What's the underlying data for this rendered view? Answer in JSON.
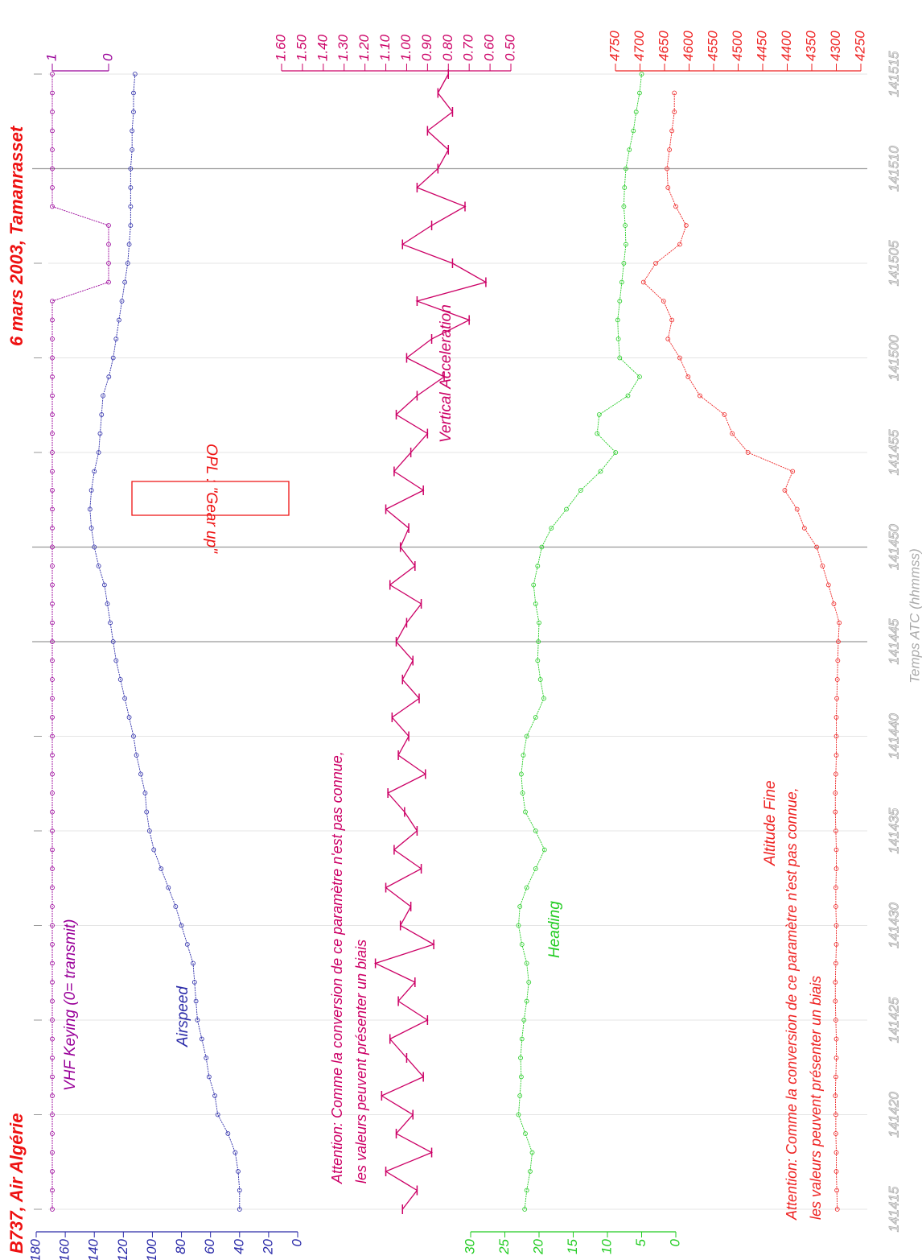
{
  "chart_data": {
    "type": "line",
    "title": "B737, Air Algérie",
    "subtitle": "6 mars 2003, Tamanrasset",
    "x_label": "Temps ATC (hhmmss)",
    "x": [
      0,
      1,
      2,
      3,
      4,
      5,
      6,
      7,
      8,
      9,
      10,
      11,
      12,
      13,
      14,
      15,
      16,
      17,
      18,
      19,
      20,
      21,
      22,
      23,
      24,
      25,
      26,
      27,
      28,
      29,
      30,
      31,
      32,
      33,
      34,
      35,
      36,
      37,
      38,
      39,
      40,
      41,
      42,
      43,
      44,
      45,
      46,
      47,
      48,
      49,
      50,
      51,
      52,
      53,
      54,
      55,
      56,
      57,
      58,
      59,
      60
    ],
    "xlim": [
      0,
      60
    ],
    "xticks": [
      {
        "value": 0,
        "label": "141415"
      },
      {
        "value": 5,
        "label": "141420"
      },
      {
        "value": 10,
        "label": "141425"
      },
      {
        "value": 15,
        "label": "141430"
      },
      {
        "value": 20,
        "label": "141435"
      },
      {
        "value": 25,
        "label": "141440"
      },
      {
        "value": 30,
        "label": "141445"
      },
      {
        "value": 35,
        "label": "141450"
      },
      {
        "value": 40,
        "label": "141455"
      },
      {
        "value": 45,
        "label": "141500"
      },
      {
        "value": 50,
        "label": "141505"
      },
      {
        "value": 55,
        "label": "141510"
      },
      {
        "value": 60,
        "label": "141515"
      }
    ],
    "grid": true,
    "event_lines": [
      30,
      35,
      55
    ],
    "series": [
      {
        "name": "Airspeed",
        "color": "#2a2aa8",
        "axis": "left",
        "markers": true,
        "ylim": [
          0,
          180
        ],
        "yticks": [
          0,
          20,
          40,
          60,
          80,
          100,
          120,
          140,
          160,
          180
        ],
        "values": [
          40,
          40,
          41,
          43,
          48,
          55,
          57,
          61,
          63,
          66,
          69,
          70,
          71,
          72,
          76,
          80,
          84,
          89,
          94,
          99,
          102,
          104,
          105,
          108,
          111,
          113,
          116,
          119,
          122,
          125,
          127,
          129,
          131,
          133,
          137,
          140,
          142,
          143,
          142,
          140,
          137,
          136,
          135,
          134,
          130,
          127,
          125,
          123,
          121,
          119,
          117,
          116,
          115,
          115,
          115,
          115,
          114,
          114,
          113,
          113,
          112
        ]
      },
      {
        "name": "Heading",
        "color": "#22cc22",
        "axis": "left",
        "markers": true,
        "ylim": [
          0,
          30
        ],
        "yticks": [
          0,
          5,
          10,
          15,
          20,
          25,
          30
        ],
        "values": [
          22.1,
          21.8,
          21.3,
          21.0,
          22.0,
          23.0,
          22.8,
          22.6,
          22.7,
          22.5,
          22.2,
          21.8,
          21.5,
          21.8,
          22.5,
          23.0,
          22.8,
          21.8,
          20.5,
          19.2,
          20.5,
          22.0,
          22.4,
          22.6,
          22.3,
          21.8,
          20.5,
          19.3,
          19.8,
          20.2,
          20.1,
          20.0,
          20.5,
          20.8,
          20.2,
          19.6,
          18.2,
          16.0,
          13.9,
          11.0,
          8.8,
          11.5,
          11.2,
          7.0,
          5.3,
          8.2,
          8.4,
          8.5,
          8.2,
          7.9,
          7.6,
          7.3,
          7.4,
          7.6,
          7.5,
          7.3,
          6.8,
          6.2,
          5.8,
          5.3,
          5.0
        ]
      },
      {
        "name": "VHF Keying (0= transmit)",
        "color": "#990099",
        "axis": "right",
        "markers": true,
        "ylim": [
          0,
          1
        ],
        "yticks": [
          0,
          1
        ],
        "values": [
          1,
          1,
          1,
          1,
          1,
          1,
          1,
          1,
          1,
          1,
          1,
          1,
          1,
          1,
          1,
          1,
          1,
          1,
          1,
          1,
          1,
          1,
          1,
          1,
          1,
          1,
          1,
          1,
          1,
          1,
          1,
          1,
          1,
          1,
          1,
          1,
          1,
          1,
          1,
          1,
          1,
          1,
          1,
          1,
          1,
          1,
          1,
          1,
          1,
          0,
          0,
          0,
          0,
          1,
          1,
          1,
          1,
          1,
          1,
          1,
          1
        ]
      },
      {
        "name": "Vertical Acceleration",
        "color": "#cc0066",
        "axis": "right",
        "markers": false,
        "ylim": [
          0.5,
          1.6
        ],
        "yticks": [
          {
            "value": 0.5,
            "label": "0.50"
          },
          {
            "value": 0.6,
            "label": "0.60"
          },
          {
            "value": 0.7,
            "label": "0.70"
          },
          {
            "value": 0.8,
            "label": "0.80"
          },
          {
            "value": 0.9,
            "label": "0.90"
          },
          {
            "value": 1.0,
            "label": "1.00"
          },
          {
            "value": 1.1,
            "label": "1.10"
          },
          {
            "value": 1.2,
            "label": "1.20"
          },
          {
            "value": 1.3,
            "label": "1.30"
          },
          {
            "value": 1.4,
            "label": "1.40"
          },
          {
            "value": 1.5,
            "label": "1.50"
          },
          {
            "value": 1.6,
            "label": "1.60"
          }
        ],
        "values": [
          1.02,
          0.95,
          1.1,
          0.88,
          1.05,
          0.97,
          1.12,
          0.92,
          1.0,
          1.08,
          0.9,
          1.04,
          0.96,
          1.15,
          0.87,
          1.03,
          0.98,
          1.1,
          0.93,
          1.06,
          0.95,
          1.01,
          1.09,
          0.91,
          1.04,
          0.99,
          1.07,
          0.94,
          1.02,
          0.97,
          1.05,
          1.0,
          0.93,
          1.08,
          0.96,
          1.03,
          0.99,
          1.1,
          0.92,
          1.06,
          0.98,
          0.9,
          1.05,
          0.95,
          0.82,
          1.0,
          0.88,
          0.7,
          0.95,
          0.62,
          0.78,
          1.02,
          0.88,
          0.72,
          0.95,
          0.85,
          0.8,
          0.9,
          0.78,
          0.85,
          0.8
        ]
      },
      {
        "name": "Altitude Fine",
        "color": "#ee2222",
        "axis": "right",
        "markers": true,
        "ylim": [
          4250,
          4750
        ],
        "yticks": [
          4250,
          4300,
          4350,
          4400,
          4450,
          4500,
          4550,
          4600,
          4650,
          4700,
          4750
        ],
        "values": [
          4298,
          4299,
          4300,
          4300,
          4301,
          4301,
          4302,
          4301,
          4300,
          4300,
          4301,
          4302,
          4302,
          4301,
          4300,
          4300,
          4301,
          4301,
          4300,
          4300,
          4301,
          4302,
          4302,
          4301,
          4300,
          4300,
          4300,
          4299,
          4298,
          4297,
          4296,
          4294,
          4305,
          4316,
          4328,
          4340,
          4365,
          4380,
          4405,
          4389,
          4480,
          4512,
          4528,
          4578,
          4602,
          4619,
          4643,
          4635,
          4652,
          4693,
          4668,
          4619,
          4606,
          4627,
          4643,
          4645,
          4640,
          4635,
          4630,
          4630,
          null
        ]
      }
    ],
    "notes": [
      {
        "color": "#cc0066",
        "lines": [
          "Attention: Comme la conversion de ce paramètre n'est pas connue,",
          "les valeurs peuvent présenter un biais"
        ]
      },
      {
        "color": "#ee2222",
        "lines": [
          "Attention: Comme la conversion de ce paramètre n'est pas connue,",
          "les valeurs peuvent présenter un biais"
        ]
      }
    ],
    "callout": "OPL : \"Gear up\""
  }
}
